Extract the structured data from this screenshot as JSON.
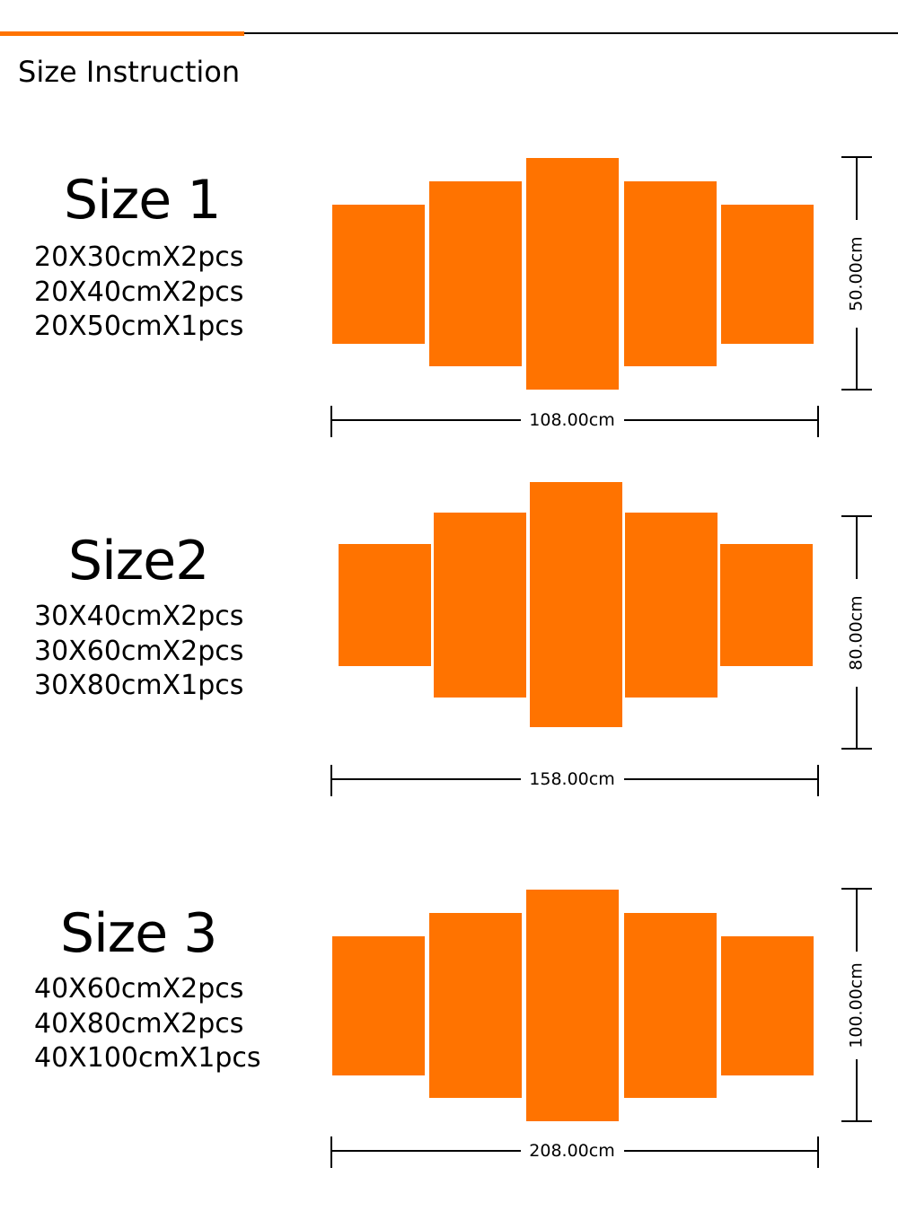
{
  "header": {
    "title": "Size Instruction"
  },
  "colors": {
    "accent": "#ff7300",
    "line": "#000000"
  },
  "sizes": [
    {
      "title": "Size 1",
      "specs": [
        "20X30cmX2pcs",
        "20X40cmX2pcs",
        "20X50cmX1pcs"
      ],
      "width_label": "108.00cm",
      "height_label": "50.00cm"
    },
    {
      "title": "Size2",
      "specs": [
        "30X40cmX2pcs",
        "30X60cmX2pcs",
        "30X80cmX1pcs"
      ],
      "width_label": "158.00cm",
      "height_label": "80.00cm"
    },
    {
      "title": "Size 3",
      "specs": [
        "40X60cmX2pcs",
        "40X80cmX2pcs",
        "40X100cmX1pcs"
      ],
      "width_label": "208.00cm",
      "height_label": "100.00cm"
    }
  ]
}
